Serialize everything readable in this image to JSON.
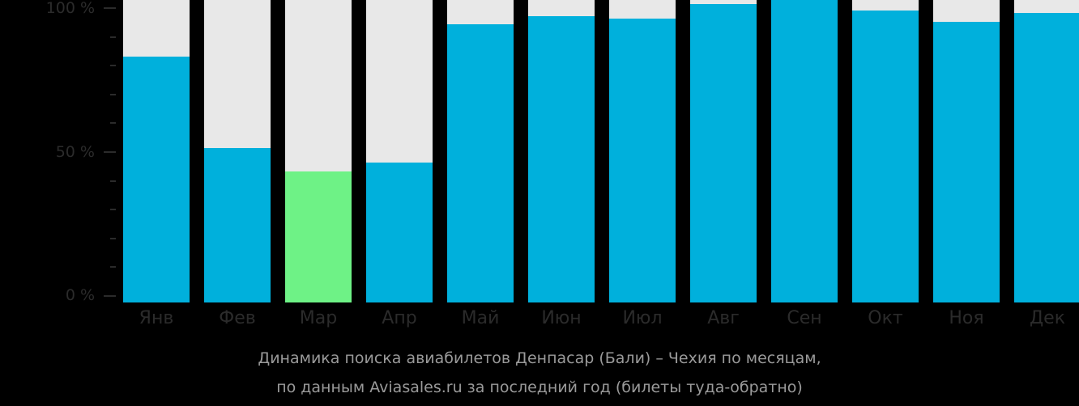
{
  "chart_data": {
    "type": "bar",
    "title": "Динамика поиска авиабилетов Денпасар (Бали) – Чехия по месяцам,",
    "subtitle": "по данным Aviasales.ru за последний год (билеты туда-обратно)",
    "xlabel": "",
    "ylabel": "",
    "ylim": [
      0,
      100
    ],
    "yticks": [
      "0 %",
      "50 %",
      "100 %"
    ],
    "categories": [
      "Янв",
      "Фев",
      "Мар",
      "Апр",
      "Май",
      "Июн",
      "Июл",
      "Авг",
      "Сен",
      "Окт",
      "Ноя",
      "Дек"
    ],
    "values": [
      83,
      51,
      43,
      46,
      94,
      97,
      96,
      101,
      103,
      99,
      95,
      98
    ],
    "highlight_index": 2,
    "colors": {
      "bar": "#00b0dc",
      "highlight": "#6ef286",
      "background_bar": "#e8e8e8",
      "page": "#000000"
    },
    "grid": false,
    "legend": "none"
  },
  "axis": {
    "y0": "0 %",
    "y50": "50 %",
    "y100": "100 %"
  },
  "caption": {
    "line1": "Динамика поиска авиабилетов Денпасар (Бали) – Чехия по месяцам,",
    "line2": "по данным Aviasales.ru за последний год (билеты туда-обратно)"
  }
}
